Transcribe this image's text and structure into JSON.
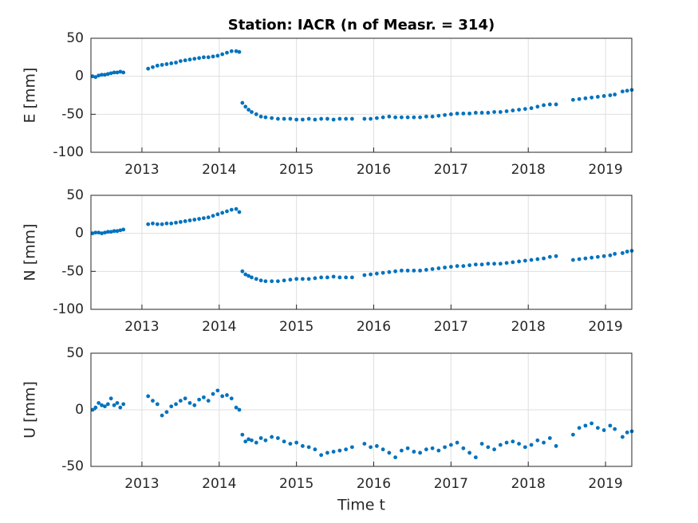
{
  "chart_data": [
    {
      "type": "scatter",
      "title": "Station: IACR (n of Measr. = 314)",
      "ylabel": "E [mm]",
      "color": "#0072bd",
      "grid": true,
      "xlim": [
        2012.34,
        2019.34
      ],
      "xticks": [
        2013,
        2014,
        2015,
        2016,
        2017,
        2018,
        2019
      ],
      "ylim": [
        -100,
        50
      ],
      "yticks": [
        -100,
        -50,
        0,
        50
      ],
      "x": [
        2012.36,
        2012.4,
        2012.44,
        2012.48,
        2012.52,
        2012.56,
        2012.6,
        2012.64,
        2012.68,
        2012.72,
        2012.76,
        2013.08,
        2013.14,
        2013.2,
        2013.26,
        2013.32,
        2013.38,
        2013.44,
        2013.5,
        2013.56,
        2013.62,
        2013.68,
        2013.74,
        2013.8,
        2013.86,
        2013.92,
        2013.98,
        2014.04,
        2014.1,
        2014.16,
        2014.22,
        2014.26,
        2014.3,
        2014.34,
        2014.38,
        2014.42,
        2014.48,
        2014.54,
        2014.6,
        2014.68,
        2014.76,
        2014.84,
        2014.92,
        2015.0,
        2015.08,
        2015.16,
        2015.24,
        2015.32,
        2015.4,
        2015.48,
        2015.56,
        2015.64,
        2015.72,
        2015.88,
        2015.96,
        2016.04,
        2016.12,
        2016.2,
        2016.28,
        2016.36,
        2016.44,
        2016.52,
        2016.6,
        2016.68,
        2016.76,
        2016.84,
        2016.92,
        2017.0,
        2017.08,
        2017.16,
        2017.24,
        2017.32,
        2017.4,
        2017.48,
        2017.56,
        2017.64,
        2017.72,
        2017.8,
        2017.88,
        2017.96,
        2018.04,
        2018.12,
        2018.2,
        2018.28,
        2018.36,
        2018.58,
        2018.66,
        2018.74,
        2018.82,
        2018.9,
        2018.98,
        2019.06,
        2019.12,
        2019.22,
        2019.28,
        2019.34
      ],
      "values": [
        0,
        -1,
        1,
        2,
        2,
        3,
        4,
        5,
        5,
        6,
        5,
        10,
        12,
        14,
        15,
        16,
        17,
        18,
        20,
        21,
        22,
        23,
        24,
        25,
        25,
        26,
        27,
        29,
        31,
        33,
        33,
        32,
        -35,
        -40,
        -44,
        -47,
        -50,
        -53,
        -54,
        -55,
        -56,
        -56,
        -56,
        -57,
        -57,
        -56,
        -57,
        -56,
        -56,
        -57,
        -56,
        -56,
        -56,
        -56,
        -56,
        -55,
        -54,
        -53,
        -54,
        -54,
        -54,
        -54,
        -54,
        -53,
        -53,
        -52,
        -51,
        -50,
        -49,
        -49,
        -49,
        -48,
        -48,
        -48,
        -47,
        -47,
        -46,
        -45,
        -44,
        -43,
        -42,
        -40,
        -38,
        -37,
        -37,
        -31,
        -30,
        -29,
        -28,
        -27,
        -26,
        -25,
        -24,
        -20,
        -19,
        -18
      ]
    },
    {
      "type": "scatter",
      "ylabel": "N [mm]",
      "color": "#0072bd",
      "grid": true,
      "xlim": [
        2012.34,
        2019.34
      ],
      "xticks": [
        2013,
        2014,
        2015,
        2016,
        2017,
        2018,
        2019
      ],
      "ylim": [
        -100,
        50
      ],
      "yticks": [
        -100,
        -50,
        0,
        50
      ],
      "x": [
        2012.36,
        2012.4,
        2012.44,
        2012.48,
        2012.52,
        2012.56,
        2012.6,
        2012.64,
        2012.68,
        2012.72,
        2012.76,
        2013.08,
        2013.14,
        2013.2,
        2013.26,
        2013.32,
        2013.38,
        2013.44,
        2013.5,
        2013.56,
        2013.62,
        2013.68,
        2013.74,
        2013.8,
        2013.86,
        2013.92,
        2013.98,
        2014.04,
        2014.1,
        2014.16,
        2014.22,
        2014.26,
        2014.3,
        2014.34,
        2014.38,
        2014.42,
        2014.48,
        2014.54,
        2014.6,
        2014.68,
        2014.76,
        2014.84,
        2014.92,
        2015.0,
        2015.08,
        2015.16,
        2015.24,
        2015.32,
        2015.4,
        2015.48,
        2015.56,
        2015.64,
        2015.72,
        2015.88,
        2015.96,
        2016.04,
        2016.12,
        2016.2,
        2016.28,
        2016.36,
        2016.44,
        2016.52,
        2016.6,
        2016.68,
        2016.76,
        2016.84,
        2016.92,
        2017.0,
        2017.08,
        2017.16,
        2017.24,
        2017.32,
        2017.4,
        2017.48,
        2017.56,
        2017.64,
        2017.72,
        2017.8,
        2017.88,
        2017.96,
        2018.04,
        2018.12,
        2018.2,
        2018.28,
        2018.36,
        2018.58,
        2018.66,
        2018.74,
        2018.82,
        2018.9,
        2018.98,
        2019.06,
        2019.12,
        2019.22,
        2019.28,
        2019.34
      ],
      "values": [
        0,
        1,
        1,
        0,
        1,
        2,
        2,
        3,
        3,
        4,
        5,
        12,
        13,
        12,
        12,
        13,
        13,
        14,
        15,
        16,
        17,
        18,
        19,
        20,
        21,
        23,
        25,
        27,
        29,
        31,
        32,
        28,
        -50,
        -54,
        -56,
        -58,
        -60,
        -62,
        -63,
        -63,
        -63,
        -62,
        -61,
        -60,
        -60,
        -60,
        -59,
        -58,
        -58,
        -57,
        -58,
        -58,
        -58,
        -55,
        -54,
        -53,
        -52,
        -51,
        -50,
        -49,
        -49,
        -49,
        -49,
        -48,
        -47,
        -46,
        -45,
        -44,
        -43,
        -43,
        -42,
        -41,
        -41,
        -40,
        -40,
        -40,
        -39,
        -38,
        -37,
        -36,
        -35,
        -34,
        -33,
        -31,
        -30,
        -35,
        -34,
        -33,
        -32,
        -31,
        -30,
        -29,
        -27,
        -26,
        -24,
        -23
      ]
    },
    {
      "type": "scatter",
      "ylabel": "U [mm]",
      "xlabel": "Time t",
      "color": "#0072bd",
      "grid": true,
      "xlim": [
        2012.34,
        2019.34
      ],
      "xticks": [
        2013,
        2014,
        2015,
        2016,
        2017,
        2018,
        2019
      ],
      "ylim": [
        -50,
        50
      ],
      "yticks": [
        -50,
        0,
        50
      ],
      "x": [
        2012.36,
        2012.4,
        2012.44,
        2012.48,
        2012.52,
        2012.56,
        2012.6,
        2012.64,
        2012.68,
        2012.72,
        2012.76,
        2013.08,
        2013.14,
        2013.2,
        2013.26,
        2013.32,
        2013.38,
        2013.44,
        2013.5,
        2013.56,
        2013.62,
        2013.68,
        2013.74,
        2013.8,
        2013.86,
        2013.92,
        2013.98,
        2014.04,
        2014.1,
        2014.16,
        2014.22,
        2014.26,
        2014.3,
        2014.34,
        2014.38,
        2014.42,
        2014.48,
        2014.54,
        2014.6,
        2014.68,
        2014.76,
        2014.84,
        2014.92,
        2015.0,
        2015.08,
        2015.16,
        2015.24,
        2015.32,
        2015.4,
        2015.48,
        2015.56,
        2015.64,
        2015.72,
        2015.88,
        2015.96,
        2016.04,
        2016.12,
        2016.2,
        2016.28,
        2016.36,
        2016.44,
        2016.52,
        2016.6,
        2016.68,
        2016.76,
        2016.84,
        2016.92,
        2017.0,
        2017.08,
        2017.16,
        2017.24,
        2017.32,
        2017.4,
        2017.48,
        2017.56,
        2017.64,
        2017.72,
        2017.8,
        2017.88,
        2017.96,
        2018.04,
        2018.12,
        2018.2,
        2018.28,
        2018.36,
        2018.58,
        2018.66,
        2018.74,
        2018.82,
        2018.9,
        2018.98,
        2019.06,
        2019.12,
        2019.22,
        2019.28,
        2019.34
      ],
      "values": [
        0,
        2,
        6,
        4,
        3,
        5,
        10,
        4,
        6,
        2,
        5,
        12,
        8,
        5,
        -5,
        -2,
        3,
        5,
        8,
        10,
        6,
        4,
        9,
        11,
        8,
        14,
        17,
        12,
        13,
        10,
        2,
        0,
        -22,
        -28,
        -26,
        -27,
        -29,
        -25,
        -27,
        -24,
        -25,
        -28,
        -30,
        -29,
        -32,
        -33,
        -35,
        -40,
        -38,
        -37,
        -36,
        -35,
        -33,
        -30,
        -33,
        -32,
        -35,
        -38,
        -42,
        -36,
        -34,
        -37,
        -38,
        -35,
        -34,
        -36,
        -33,
        -31,
        -29,
        -34,
        -38,
        -42,
        -30,
        -33,
        -35,
        -31,
        -29,
        -28,
        -30,
        -33,
        -31,
        -27,
        -29,
        -25,
        -32,
        -22,
        -16,
        -14,
        -12,
        -16,
        -18,
        -14,
        -17,
        -24,
        -20,
        -19
      ]
    }
  ]
}
